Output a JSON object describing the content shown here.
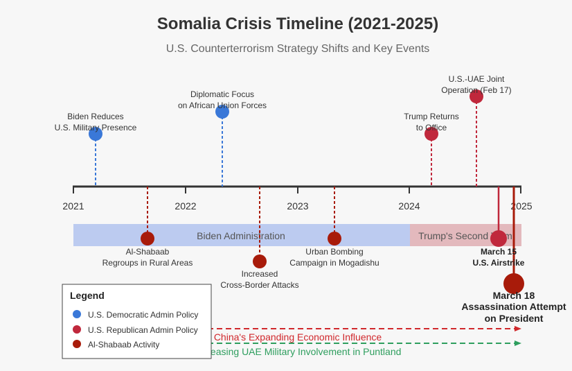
{
  "title": "Somalia Crisis Timeline (2021-2025)",
  "subtitle": "U.S. Counterterrorism Strategy Shifts and Key Events",
  "colors": {
    "dem": "#3a78d8",
    "rep": "#c0283c",
    "shabaab": "#a81b0a",
    "axis": "#333333",
    "biden_band": "#bccbf0",
    "trump_band": "#e3b9bd",
    "china_trend": "#d0282c",
    "uae_trend": "#2e9e5e"
  },
  "years": [
    "2021",
    "2022",
    "2023",
    "2024",
    "2025"
  ],
  "eras": {
    "biden": "Biden Administration",
    "trump": "Trump's Second Term"
  },
  "events": {
    "biden_reduces": [
      "Biden Reduces",
      "U.S. Military Presence"
    ],
    "diplomatic_focus": [
      "Diplomatic Focus",
      "on African Union Forces"
    ],
    "trump_returns": [
      "Trump Returns",
      "to Office"
    ],
    "uae_joint_op": [
      "U.S.-UAE Joint",
      "Operation (Feb 17)"
    ],
    "regroups": [
      "Al-Shabaab",
      "Regroups in Rural Areas"
    ],
    "cross_border": [
      "Increased",
      "Cross-Border Attacks"
    ],
    "urban_bombing": [
      "Urban Bombing",
      "Campaign in Mogadishu"
    ],
    "march15": [
      "March 15",
      "U.S. Airstrike"
    ],
    "march18": [
      "March 18",
      "Assassination Attempt",
      "on President"
    ]
  },
  "trends": {
    "china": "China's Expanding Economic Influence",
    "uae": "Increasing UAE Military Involvement in Puntland"
  },
  "legend": {
    "title": "Legend",
    "items": [
      "U.S. Democratic Admin Policy",
      "U.S. Republican Admin Policy",
      "Al-Shabaab Activity"
    ]
  }
}
